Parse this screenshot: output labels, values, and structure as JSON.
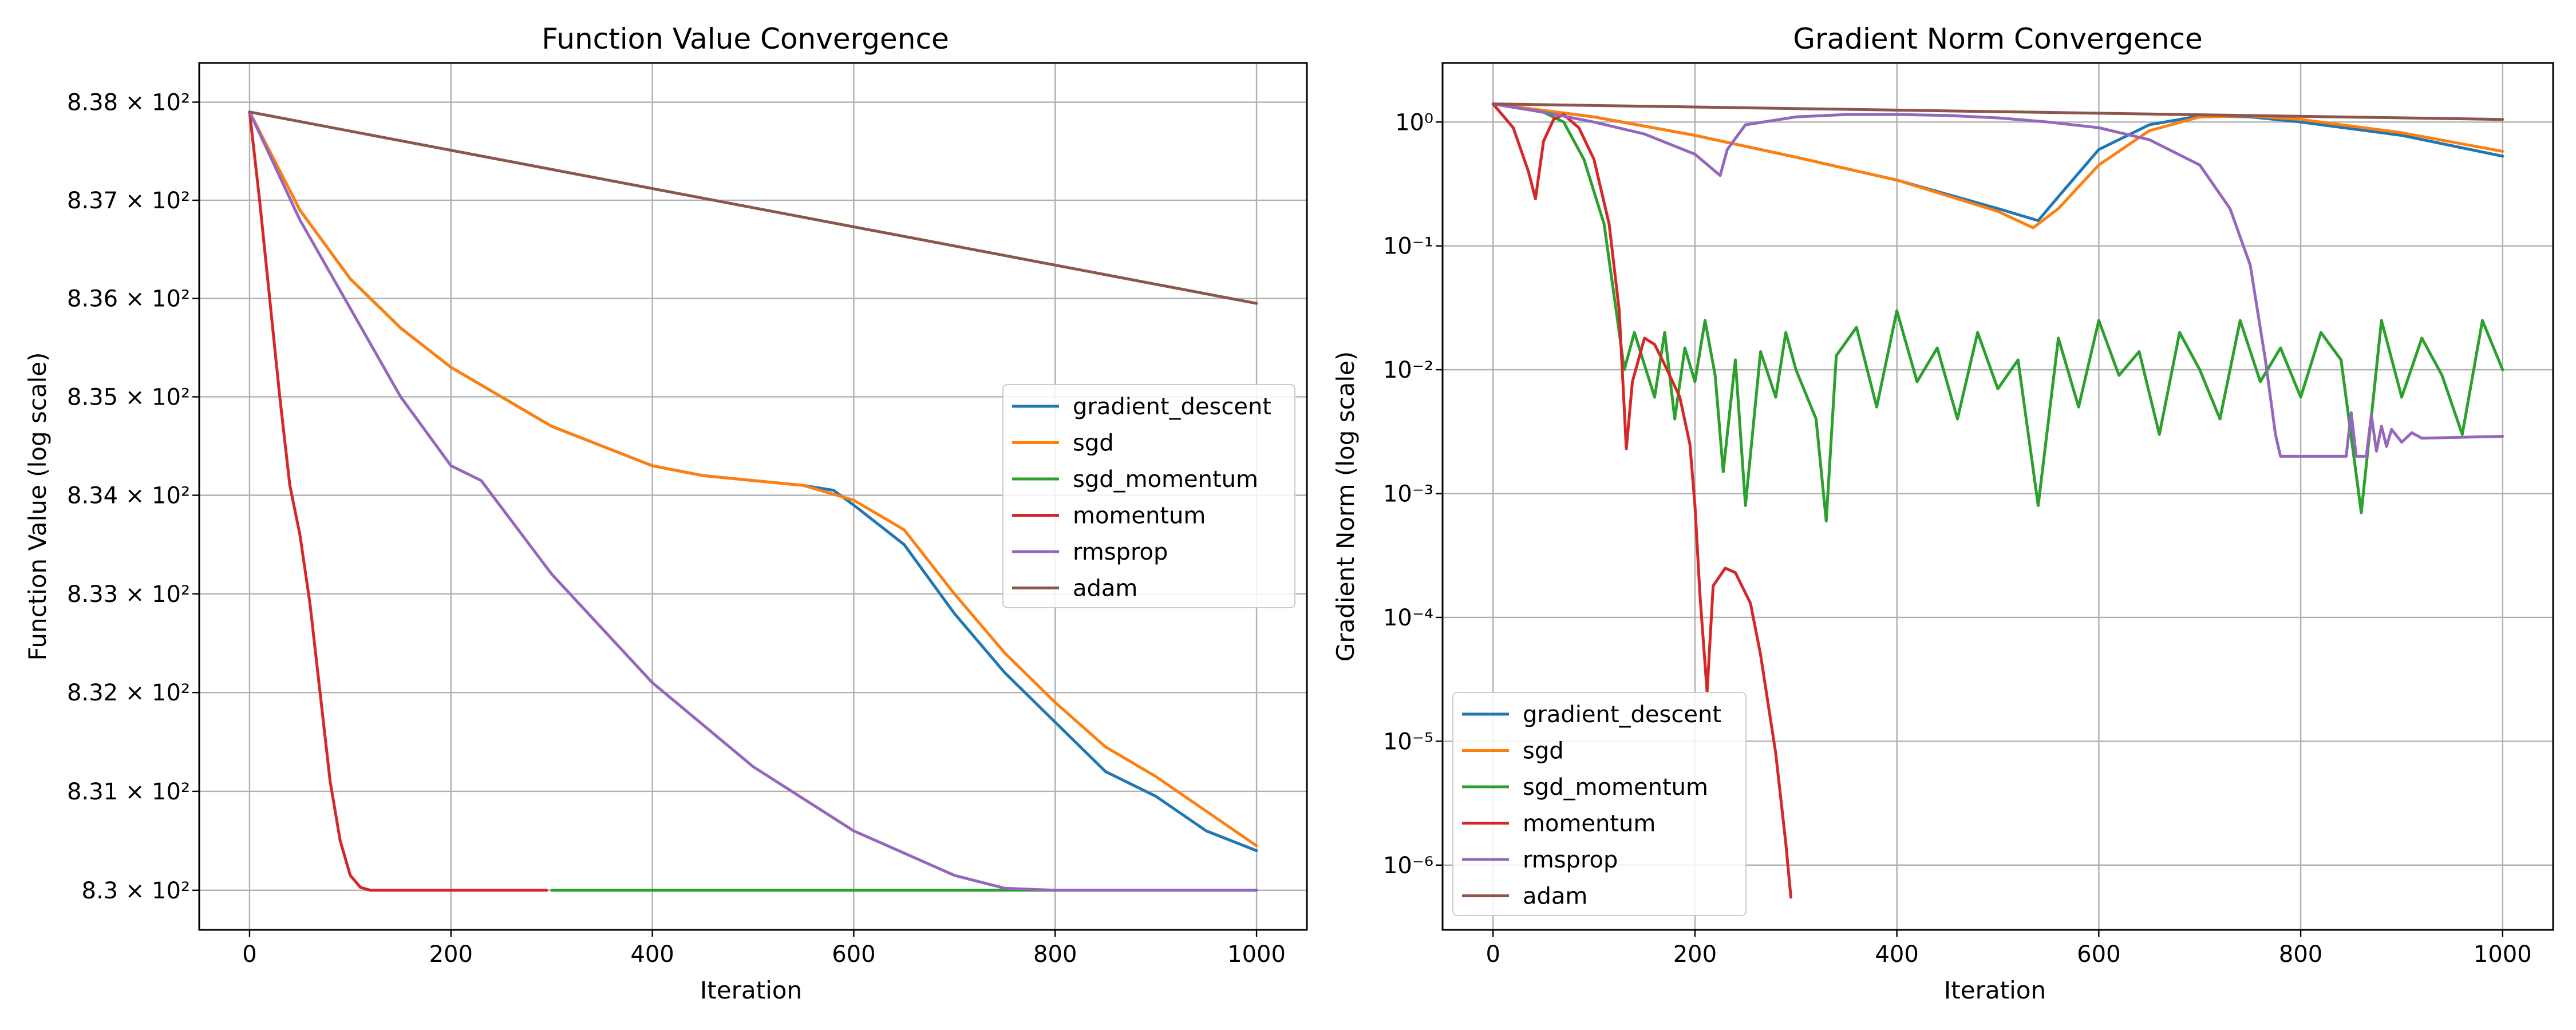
{
  "chart_data": [
    {
      "type": "line",
      "title": "Function Value Convergence",
      "xlabel": "Iteration",
      "ylabel": "Function Value (log scale)",
      "yscale": "log",
      "xlim": [
        -50,
        1050
      ],
      "ylim": [
        829.6,
        838.4
      ],
      "xticks": [
        0,
        200,
        400,
        600,
        800,
        1000
      ],
      "xtick_labels": [
        "0",
        "200",
        "400",
        "600",
        "800",
        "1000"
      ],
      "yticks": [
        830,
        831,
        832,
        833,
        834,
        835,
        836,
        837,
        838
      ],
      "ytick_labels": [
        "8.3 × 10²",
        "8.31 × 10²",
        "8.32 × 10²",
        "8.33 × 10²",
        "8.34 × 10²",
        "8.35 × 10²",
        "8.36 × 10²",
        "8.37 × 10²",
        "8.38 × 10²"
      ],
      "grid": true,
      "legend_position": "center-right",
      "series": [
        {
          "name": "gradient_descent",
          "color": "#1f77b4",
          "points": [
            [
              0,
              837.9
            ],
            [
              50,
              836.9
            ],
            [
              100,
              836.2
            ],
            [
              150,
              835.7
            ],
            [
              200,
              835.3
            ],
            [
              250,
              835.0
            ],
            [
              300,
              834.7
            ],
            [
              350,
              834.5
            ],
            [
              400,
              834.3
            ],
            [
              450,
              834.2
            ],
            [
              500,
              834.15
            ],
            [
              550,
              834.1
            ],
            [
              580,
              834.05
            ],
            [
              600,
              833.9
            ],
            [
              650,
              833.5
            ],
            [
              700,
              832.8
            ],
            [
              750,
              832.2
            ],
            [
              800,
              831.7
            ],
            [
              850,
              831.2
            ],
            [
              900,
              830.95
            ],
            [
              950,
              830.6
            ],
            [
              1000,
              830.4
            ]
          ]
        },
        {
          "name": "sgd",
          "color": "#ff7f0e",
          "points": [
            [
              0,
              837.9
            ],
            [
              50,
              836.9
            ],
            [
              100,
              836.2
            ],
            [
              150,
              835.7
            ],
            [
              200,
              835.3
            ],
            [
              250,
              835.0
            ],
            [
              300,
              834.7
            ],
            [
              350,
              834.5
            ],
            [
              400,
              834.3
            ],
            [
              450,
              834.2
            ],
            [
              500,
              834.15
            ],
            [
              550,
              834.1
            ],
            [
              600,
              833.95
            ],
            [
              650,
              833.65
            ],
            [
              700,
              833.0
            ],
            [
              750,
              832.4
            ],
            [
              800,
              831.9
            ],
            [
              850,
              831.45
            ],
            [
              900,
              831.15
            ],
            [
              950,
              830.8
            ],
            [
              1000,
              830.45
            ]
          ]
        },
        {
          "name": "sgd_momentum",
          "color": "#2ca02c",
          "points": [
            [
              300,
              830.0
            ],
            [
              1000,
              830.0
            ]
          ]
        },
        {
          "name": "momentum",
          "color": "#d62728",
          "points": [
            [
              0,
              837.9
            ],
            [
              10,
              837.0
            ],
            [
              20,
              836.0
            ],
            [
              30,
              835.0
            ],
            [
              40,
              834.1
            ],
            [
              50,
              833.6
            ],
            [
              60,
              832.9
            ],
            [
              70,
              832.0
            ],
            [
              80,
              831.1
            ],
            [
              90,
              830.5
            ],
            [
              100,
              830.15
            ],
            [
              110,
              830.03
            ],
            [
              120,
              830.0
            ],
            [
              200,
              830.0
            ],
            [
              295,
              830.0
            ]
          ]
        },
        {
          "name": "rmsprop",
          "color": "#9467bd",
          "points": [
            [
              0,
              837.9
            ],
            [
              50,
              836.8
            ],
            [
              100,
              835.9
            ],
            [
              150,
              835.0
            ],
            [
              200,
              834.3
            ],
            [
              230,
              834.15
            ],
            [
              300,
              833.2
            ],
            [
              400,
              832.1
            ],
            [
              500,
              831.25
            ],
            [
              600,
              830.6
            ],
            [
              700,
              830.15
            ],
            [
              750,
              830.02
            ],
            [
              800,
              830.0
            ],
            [
              1000,
              830.0
            ]
          ]
        },
        {
          "name": "adam",
          "color": "#8c564b",
          "points": [
            [
              0,
              837.9
            ],
            [
              1000,
              835.95
            ]
          ]
        }
      ]
    },
    {
      "type": "line",
      "title": "Gradient Norm Convergence",
      "xlabel": "Iteration",
      "ylabel": "Gradient Norm (log scale)",
      "yscale": "log",
      "xlim": [
        -50,
        1050
      ],
      "ylim": [
        3e-07,
        3
      ],
      "xticks": [
        0,
        200,
        400,
        600,
        800,
        1000
      ],
      "xtick_labels": [
        "0",
        "200",
        "400",
        "600",
        "800",
        "1000"
      ],
      "yticks": [
        1e-06,
        1e-05,
        0.0001,
        0.001,
        0.01,
        0.1,
        1
      ],
      "ytick_labels": [
        "10⁻⁶",
        "10⁻⁵",
        "10⁻⁴",
        "10⁻³",
        "10⁻²",
        "10⁻¹",
        "10⁰"
      ],
      "grid": true,
      "legend_position": "lower-left",
      "series": [
        {
          "name": "gradient_descent",
          "color": "#1f77b4",
          "points": [
            [
              0,
              1.4
            ],
            [
              100,
              1.1
            ],
            [
              200,
              0.78
            ],
            [
              300,
              0.52
            ],
            [
              400,
              0.34
            ],
            [
              500,
              0.2
            ],
            [
              540,
              0.16
            ],
            [
              560,
              0.25
            ],
            [
              600,
              0.6
            ],
            [
              650,
              0.95
            ],
            [
              700,
              1.12
            ],
            [
              750,
              1.1
            ],
            [
              800,
              1.0
            ],
            [
              900,
              0.78
            ],
            [
              1000,
              0.53
            ]
          ]
        },
        {
          "name": "sgd",
          "color": "#ff7f0e",
          "points": [
            [
              0,
              1.4
            ],
            [
              100,
              1.1
            ],
            [
              200,
              0.78
            ],
            [
              300,
              0.52
            ],
            [
              400,
              0.34
            ],
            [
              500,
              0.19
            ],
            [
              535,
              0.14
            ],
            [
              560,
              0.2
            ],
            [
              600,
              0.45
            ],
            [
              650,
              0.85
            ],
            [
              700,
              1.1
            ],
            [
              750,
              1.12
            ],
            [
              800,
              1.05
            ],
            [
              900,
              0.82
            ],
            [
              1000,
              0.58
            ]
          ]
        },
        {
          "name": "sgd_momentum",
          "color": "#2ca02c",
          "points": [
            [
              0,
              1.4
            ],
            [
              50,
              1.2
            ],
            [
              70,
              1.0
            ],
            [
              90,
              0.5
            ],
            [
              110,
              0.15
            ],
            [
              125,
              0.02
            ],
            [
              130,
              0.01
            ],
            [
              140,
              0.02
            ],
            [
              160,
              0.006
            ],
            [
              170,
              0.02
            ],
            [
              180,
              0.004
            ],
            [
              190,
              0.015
            ],
            [
              200,
              0.008
            ],
            [
              210,
              0.025
            ],
            [
              220,
              0.009
            ],
            [
              228,
              0.0015
            ],
            [
              240,
              0.012
            ],
            [
              250,
              0.0008
            ],
            [
              265,
              0.014
            ],
            [
              280,
              0.006
            ],
            [
              290,
              0.02
            ],
            [
              300,
              0.01
            ],
            [
              320,
              0.004
            ],
            [
              330,
              0.0006
            ],
            [
              340,
              0.013
            ],
            [
              360,
              0.022
            ],
            [
              380,
              0.005
            ],
            [
              400,
              0.03
            ],
            [
              420,
              0.008
            ],
            [
              440,
              0.015
            ],
            [
              460,
              0.004
            ],
            [
              480,
              0.02
            ],
            [
              500,
              0.007
            ],
            [
              520,
              0.012
            ],
            [
              540,
              0.0008
            ],
            [
              560,
              0.018
            ],
            [
              580,
              0.005
            ],
            [
              600,
              0.025
            ],
            [
              620,
              0.009
            ],
            [
              640,
              0.014
            ],
            [
              660,
              0.003
            ],
            [
              680,
              0.02
            ],
            [
              700,
              0.01
            ],
            [
              720,
              0.004
            ],
            [
              740,
              0.025
            ],
            [
              760,
              0.008
            ],
            [
              780,
              0.015
            ],
            [
              800,
              0.006
            ],
            [
              820,
              0.02
            ],
            [
              840,
              0.012
            ],
            [
              860,
              0.0007
            ],
            [
              880,
              0.025
            ],
            [
              900,
              0.006
            ],
            [
              920,
              0.018
            ],
            [
              940,
              0.009
            ],
            [
              960,
              0.003
            ],
            [
              980,
              0.025
            ],
            [
              1000,
              0.01
            ]
          ]
        },
        {
          "name": "momentum",
          "color": "#d62728",
          "points": [
            [
              0,
              1.4
            ],
            [
              20,
              0.9
            ],
            [
              35,
              0.4
            ],
            [
              42,
              0.24
            ],
            [
              50,
              0.7
            ],
            [
              60,
              1.05
            ],
            [
              70,
              1.15
            ],
            [
              85,
              0.9
            ],
            [
              100,
              0.5
            ],
            [
              115,
              0.15
            ],
            [
              125,
              0.03
            ],
            [
              132,
              0.0023
            ],
            [
              138,
              0.008
            ],
            [
              150,
              0.018
            ],
            [
              160,
              0.016
            ],
            [
              170,
              0.011
            ],
            [
              185,
              0.006
            ],
            [
              195,
              0.0025
            ],
            [
              200,
              0.0008
            ],
            [
              205,
              0.00015
            ],
            [
              212,
              2.5e-05
            ],
            [
              218,
              0.00018
            ],
            [
              230,
              0.00025
            ],
            [
              240,
              0.00023
            ],
            [
              255,
              0.00013
            ],
            [
              265,
              5e-05
            ],
            [
              280,
              8e-06
            ],
            [
              290,
              1.5e-06
            ],
            [
              295,
              5.5e-07
            ]
          ]
        },
        {
          "name": "rmsprop",
          "color": "#9467bd",
          "points": [
            [
              0,
              1.4
            ],
            [
              50,
              1.2
            ],
            [
              100,
              1.0
            ],
            [
              150,
              0.8
            ],
            [
              200,
              0.55
            ],
            [
              225,
              0.37
            ],
            [
              232,
              0.6
            ],
            [
              250,
              0.95
            ],
            [
              300,
              1.1
            ],
            [
              350,
              1.15
            ],
            [
              400,
              1.15
            ],
            [
              450,
              1.13
            ],
            [
              500,
              1.08
            ],
            [
              550,
              1.0
            ],
            [
              600,
              0.9
            ],
            [
              650,
              0.72
            ],
            [
              700,
              0.45
            ],
            [
              730,
              0.2
            ],
            [
              750,
              0.07
            ],
            [
              765,
              0.012
            ],
            [
              775,
              0.003
            ],
            [
              780,
              0.002
            ],
            [
              845,
              0.002
            ],
            [
              850,
              0.0045
            ],
            [
              855,
              0.002
            ],
            [
              865,
              0.002
            ],
            [
              870,
              0.0043
            ],
            [
              875,
              0.0022
            ],
            [
              880,
              0.0035
            ],
            [
              885,
              0.0024
            ],
            [
              890,
              0.0033
            ],
            [
              900,
              0.0026
            ],
            [
              910,
              0.0031
            ],
            [
              920,
              0.0028
            ],
            [
              1000,
              0.0029
            ]
          ]
        },
        {
          "name": "adam",
          "color": "#8c564b",
          "points": [
            [
              0,
              1.4
            ],
            [
              1000,
              1.05
            ]
          ]
        }
      ]
    }
  ]
}
